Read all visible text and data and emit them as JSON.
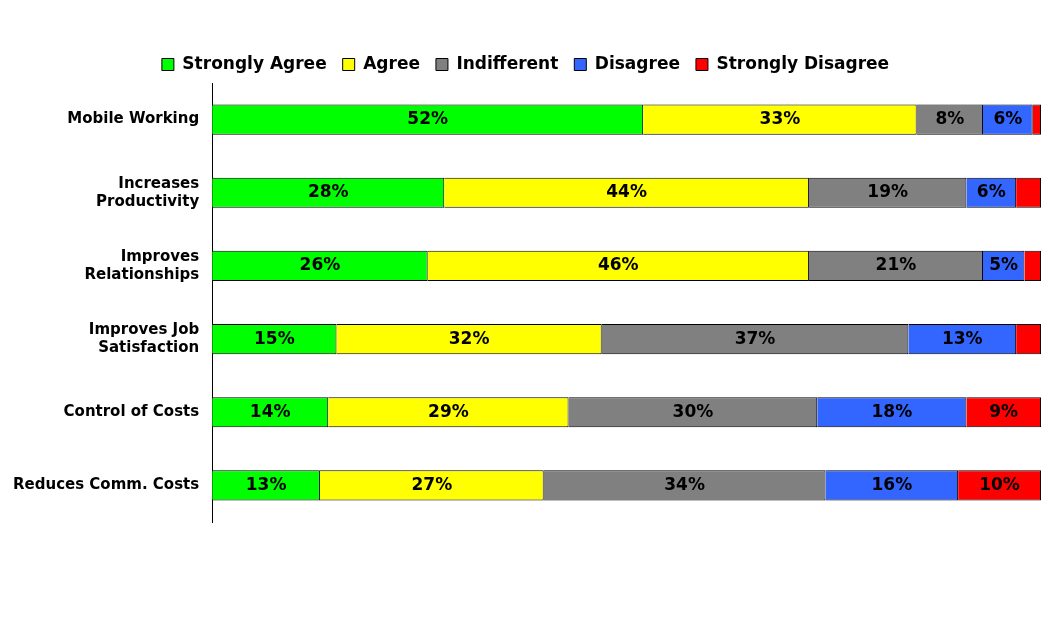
{
  "chart_data": {
    "type": "bar",
    "orientation": "horizontal",
    "stacked": true,
    "legend": "top",
    "grid": false,
    "tick_labels": "y",
    "categories": [
      "Mobile Working",
      "Increases Productivity",
      "Improves Relationships",
      "Improves Job Satisfaction",
      "Control of Costs",
      "Reduces Comm. Costs"
    ],
    "xlim": [
      0,
      100
    ],
    "series": [
      {
        "name": "Strongly Agree",
        "color": "#00ff00",
        "values": [
          52,
          28,
          26,
          15,
          14,
          13
        ],
        "value_labels": [
          "52%",
          "28%",
          "26%",
          "15%",
          "14%",
          "13%"
        ]
      },
      {
        "name": "Agree",
        "color": "#ffff00",
        "values": [
          33,
          44,
          46,
          32,
          29,
          27
        ],
        "value_labels": [
          "33%",
          "44%",
          "46%",
          "32%",
          "29%",
          "27%"
        ]
      },
      {
        "name": "Indifferent",
        "color": "#808080",
        "values": [
          8,
          19,
          21,
          37,
          30,
          34
        ],
        "value_labels": [
          "8%",
          "19%",
          "21%",
          "37%",
          "30%",
          "34%"
        ]
      },
      {
        "name": "Disagree",
        "color": "#3366ff",
        "values": [
          6,
          6,
          5,
          13,
          18,
          16
        ],
        "value_labels": [
          "6%",
          "6%",
          "5%",
          "13%",
          "18%",
          "16%"
        ]
      },
      {
        "name": "Strongly Disagree",
        "color": "#ff0000",
        "values": [
          1,
          3,
          2,
          3,
          9,
          10
        ],
        "value_labels": [
          null,
          null,
          null,
          null,
          "9%",
          "10%"
        ]
      }
    ]
  }
}
